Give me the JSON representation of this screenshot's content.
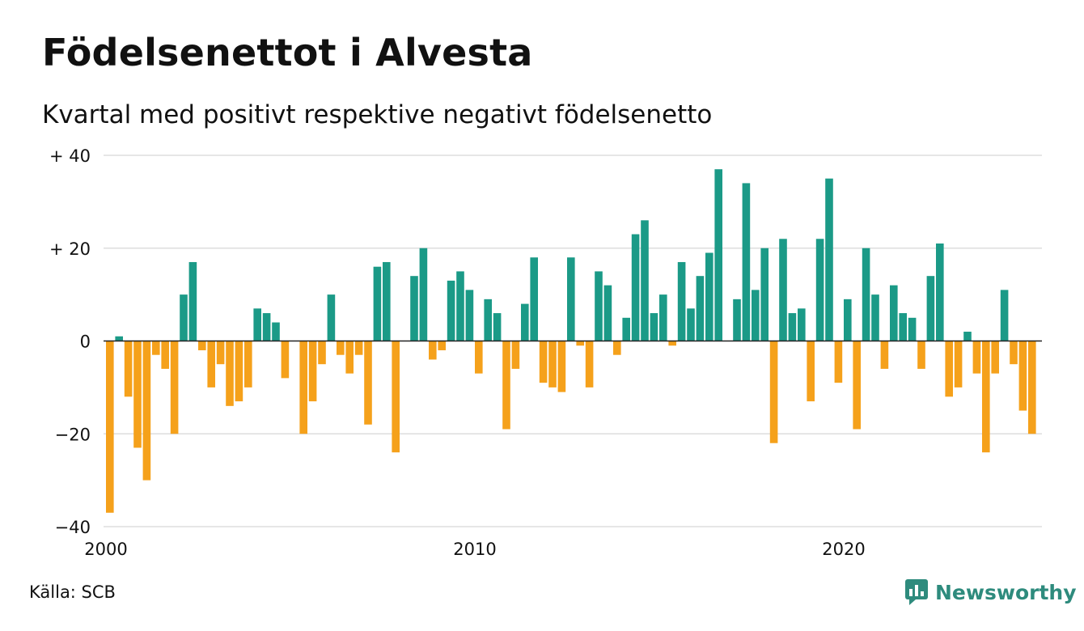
{
  "header": {
    "title": "Födelsenettot i Alvesta",
    "subtitle": "Kvartal med positivt respektive negativt födelsenetto"
  },
  "footer": {
    "source": "Källa: SCB",
    "brand": "Newsworthy",
    "brand_icon": "newsworthy-chart-bubble-icon"
  },
  "colors": {
    "positive": "#1b9a87",
    "negative": "#f5a11b",
    "grid": "#dddddd",
    "zero_line": "#222222",
    "brand": "#2e8b7d"
  },
  "chart_data": {
    "type": "bar",
    "x_unit": "quarter",
    "x_start": "2000 Q1",
    "values": [
      -37,
      1,
      -12,
      -23,
      -30,
      -3,
      -6,
      -20,
      10,
      17,
      -2,
      -10,
      -5,
      -14,
      -13,
      -10,
      7,
      6,
      4,
      -8,
      0,
      -20,
      -13,
      -5,
      10,
      -3,
      -7,
      -3,
      -18,
      16,
      17,
      -24,
      0,
      14,
      20,
      -4,
      -2,
      13,
      15,
      11,
      -7,
      9,
      6,
      -19,
      -6,
      8,
      18,
      -9,
      -10,
      -11,
      18,
      -1,
      -10,
      15,
      12,
      -3,
      5,
      23,
      26,
      6,
      10,
      -1,
      17,
      7,
      14,
      19,
      37,
      0,
      9,
      34,
      11,
      20,
      -22,
      22,
      6,
      7,
      -13,
      22,
      35,
      -9,
      9,
      -19,
      20,
      10,
      -6,
      12,
      6,
      5,
      -6,
      14,
      21,
      -12,
      -10,
      2,
      -7,
      -24,
      -7,
      11,
      -5,
      -15,
      -20
    ],
    "xticks": [
      {
        "label": "2000",
        "index": 0
      },
      {
        "label": "2010",
        "index": 40
      },
      {
        "label": "2020",
        "index": 80
      }
    ],
    "yticks": [
      {
        "value": 40,
        "label": "+ 40"
      },
      {
        "value": 20,
        "label": "+ 20"
      },
      {
        "value": 0,
        "label": "0"
      },
      {
        "value": -20,
        "label": "−20"
      },
      {
        "value": -40,
        "label": "−40"
      }
    ],
    "ylim": [
      -40,
      40
    ],
    "grid": true,
    "legend": "none",
    "title": "",
    "xlabel": "",
    "ylabel": ""
  }
}
